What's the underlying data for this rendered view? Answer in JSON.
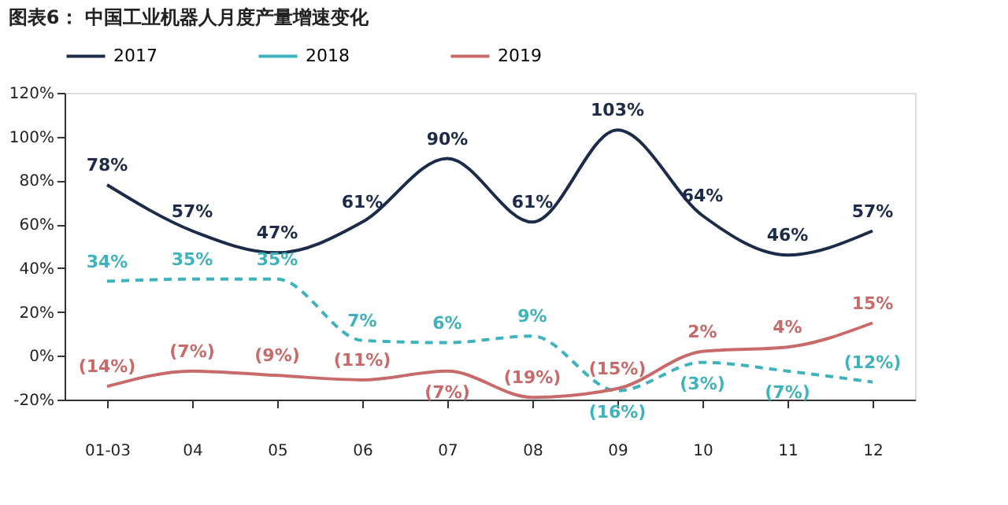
{
  "chart_data": {
    "type": "line",
    "title": "图表6： 中国工业机器人月度产量增速变化",
    "categories": [
      "01-03",
      "04",
      "05",
      "06",
      "07",
      "08",
      "09",
      "10",
      "11",
      "12"
    ],
    "series": [
      {
        "name": "2017",
        "color": "#1c2b49",
        "line_style": "solid",
        "values": [
          78,
          57,
          47,
          61,
          90,
          61,
          103,
          64,
          46,
          57
        ],
        "value_labels": [
          "78%",
          "57%",
          "47%",
          "61%",
          "90%",
          "61%",
          "103%",
          "64%",
          "46%",
          "57%"
        ]
      },
      {
        "name": "2018",
        "color": "#3fb3bd",
        "line_style": "dashed",
        "values": [
          34,
          35,
          35,
          7,
          6,
          9,
          -16,
          -3,
          -7,
          -12
        ],
        "value_labels": [
          "34%",
          "35%",
          "35%",
          "7%",
          "6%",
          "9%",
          "(16%)",
          "(3%)",
          "(7%)",
          "(12%)"
        ]
      },
      {
        "name": "2019",
        "color": "#c96a6a",
        "line_style": "solid",
        "values": [
          -14,
          -7,
          -9,
          -11,
          -7,
          -19,
          -15,
          2,
          4,
          15
        ],
        "value_labels": [
          "(14%)",
          "(7%)",
          "(9%)",
          "(11%)",
          "(7%)",
          "(19%)",
          "(15%)",
          "2%",
          "4%",
          "15%"
        ]
      }
    ],
    "ylim": [
      -20,
      120
    ],
    "yticks": [
      {
        "value": -20,
        "label": "-20%"
      },
      {
        "value": 0,
        "label": "0%"
      },
      {
        "value": 20,
        "label": "20%"
      },
      {
        "value": 40,
        "label": "40%"
      },
      {
        "value": 60,
        "label": "60%"
      },
      {
        "value": 80,
        "label": "80%"
      },
      {
        "value": 100,
        "label": "100%"
      },
      {
        "value": 120,
        "label": "120%"
      }
    ],
    "legend": "top",
    "grid": false,
    "marker": "none"
  }
}
